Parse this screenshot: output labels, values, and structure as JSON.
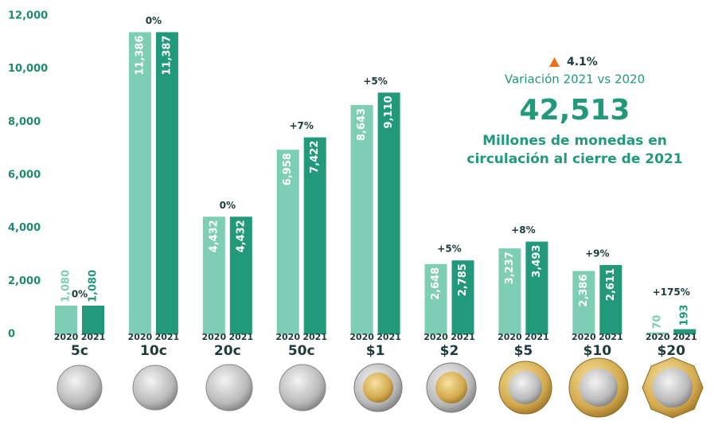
{
  "chart_data": {
    "type": "bar",
    "categories": [
      "5c",
      "10c",
      "20c",
      "50c",
      "$1",
      "$2",
      "$5",
      "$10",
      "$20"
    ],
    "series": [
      {
        "name": "2020",
        "color": "#7dceb4",
        "values": [
          1080,
          11386,
          4432,
          6958,
          8643,
          2648,
          3237,
          2386,
          70
        ],
        "value_labels": [
          "1,080",
          "11,386",
          "4,432",
          "6,958",
          "8,643",
          "2,648",
          "3,237",
          "2,386",
          "70"
        ]
      },
      {
        "name": "2021",
        "color": "#23997c",
        "values": [
          1080,
          11387,
          4432,
          7422,
          9110,
          2785,
          3493,
          2611,
          193
        ],
        "value_labels": [
          "1,080",
          "11,387",
          "4,432",
          "7,422",
          "9,110",
          "2,785",
          "3,493",
          "2,611",
          "193"
        ]
      }
    ],
    "changes": [
      "0%",
      "0%",
      "0%",
      "+7%",
      "+5%",
      "+5%",
      "+8%",
      "+9%",
      "+175%"
    ],
    "ylim": [
      0,
      12000
    ],
    "yticks": [
      0,
      {
        "value": 2000,
        "label": "2,000"
      },
      {
        "value": 4000,
        "label": "4,000"
      },
      {
        "value": 6000,
        "label": "6,000"
      },
      {
        "value": 8000,
        "label": "8,000"
      },
      {
        "value": 10000,
        "label": "10,000"
      },
      {
        "value": 12000,
        "label": "12,000"
      }
    ],
    "annotation": {
      "change": "4.1%",
      "change_label": "Variación 2021 vs 2020",
      "total": "42,513",
      "total_label": [
        "Millones de monedas en",
        "circulación al cierre de 2021"
      ]
    }
  }
}
